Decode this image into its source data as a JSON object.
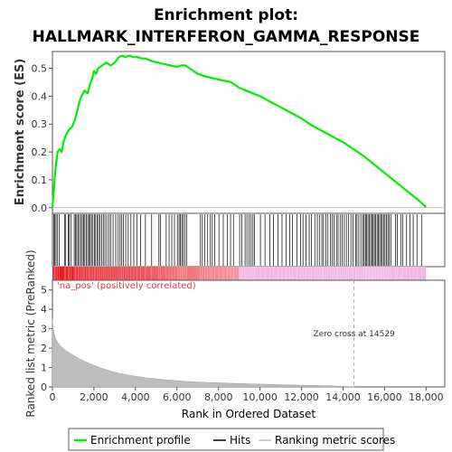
{
  "title_line1": "Enrichment plot:",
  "title_line2": "HALLMARK_INTERFERON_GAMMA_RESPONSE",
  "chart_data": {
    "type": "line",
    "x_label": "Rank in Ordered Dataset",
    "x_ticks": [
      0,
      2000,
      4000,
      6000,
      8000,
      10000,
      12000,
      14000,
      16000,
      18000
    ],
    "x_tick_labels": [
      "0",
      "2,000",
      "4,000",
      "6,000",
      "8,000",
      "10,000",
      "12,000",
      "14,000",
      "16,000",
      "18,000"
    ],
    "x_range": [
      0,
      18900
    ],
    "top_panel": {
      "ylabel": "Enrichment score (ES)",
      "y_range": [
        -0.02,
        0.56
      ],
      "y_ticks": [
        0.0,
        0.1,
        0.2,
        0.3,
        0.4,
        0.5
      ],
      "y_tick_labels": [
        "0.0",
        "0.1",
        "0.2",
        "0.3",
        "0.4",
        "0.5"
      ],
      "series_name": "Enrichment profile",
      "color": "#00ee00",
      "x": [
        0,
        60,
        150,
        250,
        350,
        450,
        550,
        650,
        800,
        950,
        1100,
        1200,
        1300,
        1400,
        1550,
        1700,
        1800,
        1900,
        2000,
        2100,
        2200,
        2400,
        2600,
        2800,
        3000,
        3200,
        3350,
        3500,
        3700,
        3900,
        4100,
        4300,
        4500,
        4800,
        5100,
        5400,
        5700,
        6000,
        6200,
        6400,
        6600,
        6800,
        7000,
        7200,
        7400,
        7700,
        8000,
        8300,
        8600,
        9000,
        9500,
        10000,
        10500,
        11000,
        11500,
        12000,
        12500,
        13000,
        13500,
        14000,
        14500,
        15000,
        15500,
        16000,
        16500,
        17000,
        17500,
        18000
      ],
      "y": [
        0.0,
        0.06,
        0.14,
        0.2,
        0.21,
        0.2,
        0.24,
        0.26,
        0.28,
        0.29,
        0.32,
        0.35,
        0.38,
        0.4,
        0.42,
        0.41,
        0.44,
        0.46,
        0.49,
        0.48,
        0.5,
        0.51,
        0.52,
        0.51,
        0.52,
        0.54,
        0.545,
        0.54,
        0.545,
        0.54,
        0.54,
        0.535,
        0.535,
        0.525,
        0.52,
        0.515,
        0.51,
        0.505,
        0.51,
        0.51,
        0.5,
        0.49,
        0.48,
        0.475,
        0.47,
        0.465,
        0.46,
        0.455,
        0.45,
        0.43,
        0.415,
        0.4,
        0.38,
        0.36,
        0.34,
        0.32,
        0.295,
        0.275,
        0.255,
        0.235,
        0.21,
        0.185,
        0.155,
        0.125,
        0.095,
        0.065,
        0.035,
        0.003
      ]
    },
    "hits": {
      "series_name": "Hits",
      "color": "#000000",
      "positions": [
        60,
        110,
        170,
        230,
        330,
        580,
        640,
        760,
        800,
        900,
        1050,
        1110,
        1170,
        1230,
        1300,
        1380,
        1440,
        1500,
        1560,
        1640,
        1700,
        1760,
        1820,
        1880,
        1950,
        2020,
        2080,
        2150,
        2220,
        2290,
        2370,
        2450,
        2530,
        2620,
        2720,
        2810,
        2920,
        3050,
        3170,
        3260,
        3340,
        3420,
        3530,
        3650,
        3780,
        3920,
        4080,
        4250,
        4480,
        4780,
        5130,
        5210,
        5480,
        5620,
        5750,
        5880,
        6020,
        6100,
        6160,
        6230,
        6300,
        6380,
        6460,
        7130,
        7220,
        7330,
        7480,
        7610,
        7700,
        7810,
        8020,
        8230,
        8420,
        8580,
        8720,
        9020,
        9130,
        9280,
        9370,
        9480,
        9570,
        9660,
        9740,
        10020,
        10240,
        10470,
        10650,
        10860,
        11060,
        11260,
        11430,
        11560,
        11780,
        11960,
        12070,
        12220,
        12370,
        12480,
        12640,
        12760,
        12860,
        12980,
        13060,
        13170,
        13270,
        13390,
        13470,
        13560,
        13680,
        13760,
        13860,
        13960,
        14060,
        14160,
        14270,
        14380,
        14480,
        14600,
        14670,
        14760,
        14860,
        14960,
        15020,
        15080,
        15140,
        15200,
        15260,
        15330,
        15390,
        15450,
        15510,
        15570,
        15640,
        15700,
        15760,
        15830,
        15890,
        15950,
        16020,
        16090,
        16160,
        16230,
        16300,
        16520,
        16620,
        16780,
        16880,
        17060,
        17220,
        17380,
        17560,
        17780
      ]
    },
    "metric_bar": {
      "zero_cross": 14529,
      "start_color": "#e8141c",
      "mid_color": "#f59aa0",
      "end_color": "#f4b6e8",
      "split_rank": 9000
    },
    "bottom_panel": {
      "ylabel": "Ranked list metric (PreRanked)",
      "y_range": [
        0,
        5.5
      ],
      "y_ticks": [
        0,
        1,
        2,
        3,
        4,
        5
      ],
      "y_tick_labels": [
        "0",
        "1",
        "2",
        "3",
        "4",
        "5"
      ],
      "series_name": "Ranking metric scores",
      "color": "#bdbdbd",
      "annotation_left": "'na_pos' (positively correlated)",
      "annotation_zero": "Zero cross at 14529",
      "x": [
        0,
        30,
        80,
        150,
        250,
        400,
        600,
        900,
        1300,
        1800,
        2400,
        3000,
        3700,
        4500,
        5500,
        6500,
        7500,
        8500,
        9500,
        10500,
        11500,
        12500,
        13500,
        14200,
        14529
      ],
      "y": [
        3.5,
        3.05,
        2.75,
        2.5,
        2.3,
        2.1,
        1.9,
        1.7,
        1.45,
        1.2,
        0.95,
        0.75,
        0.6,
        0.47,
        0.36,
        0.28,
        0.23,
        0.19,
        0.16,
        0.13,
        0.1,
        0.08,
        0.05,
        0.025,
        0.0
      ]
    },
    "legend": [
      "Enrichment profile",
      "Hits",
      "Ranking metric scores"
    ]
  }
}
